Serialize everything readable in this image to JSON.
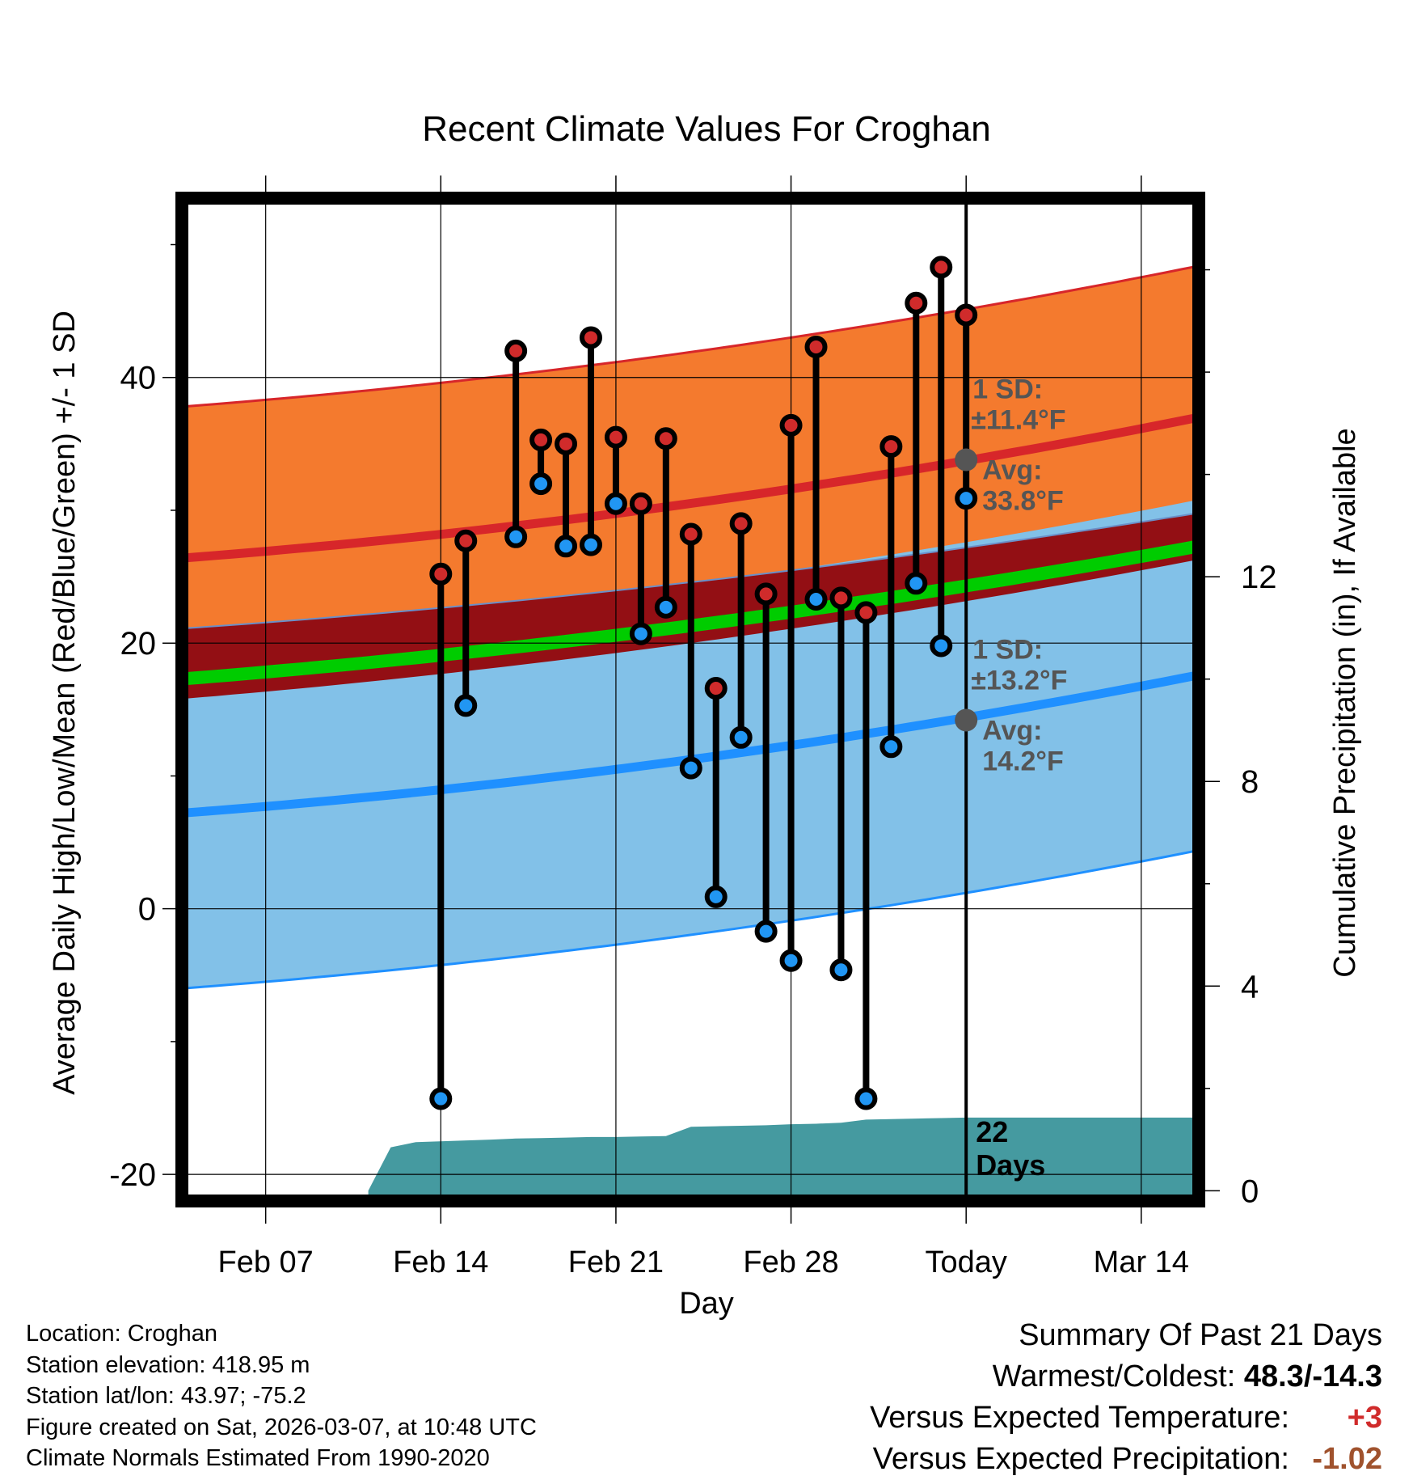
{
  "chart_data": {
    "type": "line",
    "title": "Recent Climate Values For Croghan",
    "xlabel": "Day",
    "ylabel": "Average Daily High/Low/Mean (Red/Blue/Green) +/- 1 SD",
    "y2label": "Cumulative Precipitation (in), If Available",
    "ylim": [
      -22,
      53.5
    ],
    "y_ticks": [
      -20,
      0,
      20,
      40
    ],
    "y2lim": [
      -0.2,
      19.4
    ],
    "y2_ticks": [
      0,
      4,
      8,
      12
    ],
    "xlim": [
      -2.35,
      38.3
    ],
    "x_ticks": [
      {
        "day": 1,
        "label": "Feb 07"
      },
      {
        "day": 8,
        "label": "Feb 14"
      },
      {
        "day": 15,
        "label": "Feb 21"
      },
      {
        "day": 22,
        "label": "Feb 28"
      },
      {
        "day": 29,
        "label": "Today"
      },
      {
        "day": 36,
        "label": "Mar 14"
      }
    ],
    "normals": {
      "high_mean": [
        26.4,
        37.0
      ],
      "high_sd": 11.4,
      "low_mean": [
        7.2,
        17.6
      ],
      "low_sd": 13.2,
      "mean_top": [
        21.1,
        29.8
      ],
      "mean_bottom": [
        15.8,
        26.3
      ],
      "mean_line": [
        17.3,
        27.3
      ]
    },
    "today_day": 29,
    "high_annotation": {
      "sd_label": "1 SD:",
      "sd_value": "±11.4°F",
      "avg_label": "Avg:",
      "avg_value": "33.8°F",
      "avg": 33.8
    },
    "low_annotation": {
      "sd_label": "1 SD:",
      "sd_value": "±13.2°F",
      "avg_label": "Avg:",
      "avg_value": "14.2°F",
      "avg": 14.2
    },
    "days": [
      8,
      9,
      11,
      12,
      13,
      14,
      15,
      16,
      17,
      18,
      19,
      20,
      21,
      22,
      23,
      24,
      25,
      26,
      27,
      28
    ],
    "highs": [
      25.2,
      27.7,
      42.0,
      35.3,
      35.0,
      43.0,
      35.5,
      30.5,
      35.4,
      28.2,
      16.6,
      29.0,
      23.7,
      36.4,
      42.3,
      23.4,
      22.3,
      34.8,
      45.6,
      48.3,
      44.7
    ],
    "lows": [
      -14.3,
      15.3,
      28.0,
      32.0,
      27.3,
      27.4,
      30.5,
      20.7,
      22.7,
      10.6,
      0.9,
      12.9,
      -1.7,
      -3.9,
      23.3,
      -4.6,
      -14.3,
      12.2,
      24.5,
      19.8,
      30.9
    ],
    "hi_lo_days": [
      8,
      9,
      11,
      12,
      13,
      14,
      15,
      16,
      17,
      18,
      19,
      20,
      21,
      22,
      23,
      24,
      25,
      26,
      27,
      28,
      29
    ],
    "precip_cumulative": {
      "days": [
        5.1,
        6.0,
        7.0,
        10.0,
        11.0,
        12.0,
        13.0,
        14.0,
        15.0,
        16.0,
        17.0,
        18.0,
        19.0,
        20.0,
        21.0,
        22.0,
        23.0,
        24.0,
        25.0,
        26.0,
        27.0,
        28.0,
        29.0,
        38.3
      ],
      "values": [
        0.0,
        0.85,
        0.95,
        1.0,
        1.02,
        1.03,
        1.04,
        1.05,
        1.05,
        1.06,
        1.07,
        1.25,
        1.26,
        1.27,
        1.28,
        1.3,
        1.31,
        1.33,
        1.39,
        1.4,
        1.41,
        1.42,
        1.43,
        1.43
      ]
    },
    "days_label": "22\nDays"
  },
  "footer": {
    "location": "Location: Croghan",
    "elevation": "Station elevation: 418.95 m",
    "latlon": "Station lat/lon: 43.97; -75.2",
    "created": "Figure created on Sat, 2026-03-07, at 10:48 UTC",
    "normals": "Climate Normals Estimated From 1990-2020"
  },
  "summary": {
    "title": "Summary Of Past 21 Days",
    "warmest_label": "Warmest/Coldest: ",
    "warmest_value": "48.3/-14.3",
    "temp_label": "Versus Expected Temperature:",
    "temp_value": "+3",
    "precip_label": "Versus Expected Precipitation:",
    "precip_value": "-1.02"
  },
  "colors": {
    "high_band": "#f47a2e",
    "high_line": "#d7262a",
    "mean_band": "#930f14",
    "mean_line": "#00cc00",
    "low_band": "#82c1e8",
    "low_line": "#1f90ff",
    "high_dot": "#d02b2b",
    "low_dot": "#2196f3",
    "precip": "#459aa0",
    "annotation": "#555555",
    "temp_anomaly": "#d02b2b",
    "precip_anomaly": "#a0522d"
  }
}
